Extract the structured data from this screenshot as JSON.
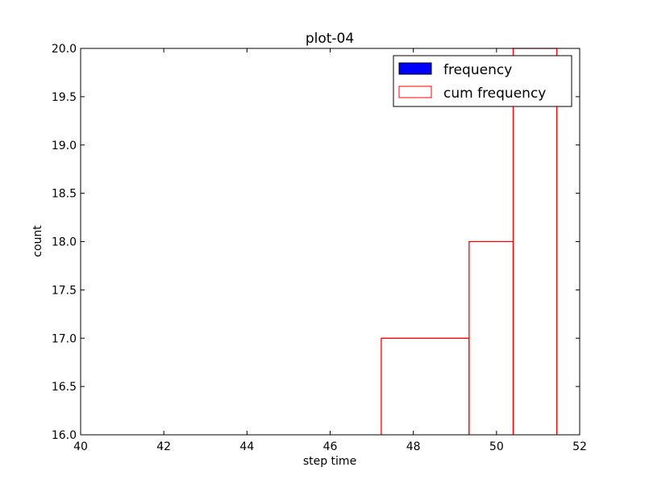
{
  "chart_data": {
    "type": "step",
    "title": "plot-04",
    "xlabel": "step time",
    "ylabel": "count",
    "xlim": [
      40,
      52
    ],
    "ylim": [
      16.0,
      20.0
    ],
    "xticks": [
      "40",
      "42",
      "44",
      "46",
      "48",
      "50",
      "52"
    ],
    "yticks": [
      "16.0",
      "16.5",
      "17.0",
      "17.5",
      "18.0",
      "18.5",
      "19.0",
      "19.5",
      "20.0"
    ],
    "legend": {
      "position": "top-right"
    },
    "series": [
      {
        "name": "frequency",
        "style": "bar",
        "color": "#0000ff",
        "edge_color": "#000000",
        "bins": []
      },
      {
        "name": "cum frequency",
        "style": "step",
        "color": "#ff0000",
        "bins": [
          {
            "x0": 47.23,
            "x1": 49.34,
            "count": 17
          },
          {
            "x0": 49.34,
            "x1": 50.4,
            "count": 18
          },
          {
            "x0": 50.4,
            "x1": 51.45,
            "count": 20
          }
        ]
      }
    ]
  }
}
